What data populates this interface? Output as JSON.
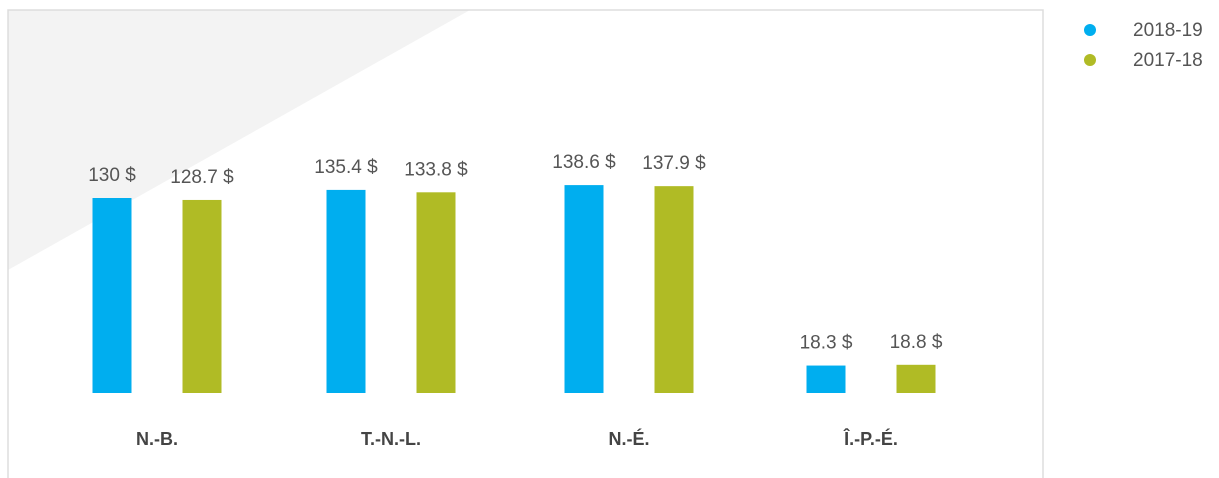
{
  "chart_data": {
    "type": "bar",
    "categories": [
      "N.-B.",
      "T.-N.-L.",
      "N.-É.",
      "Î.-P.-É."
    ],
    "series": [
      {
        "name": "2018-19",
        "color": "#00aeef",
        "values": [
          130,
          135.4,
          138.6,
          18.3
        ],
        "value_labels": [
          "130 $",
          "135.4 $",
          "138.6 $",
          "18.3 $"
        ]
      },
      {
        "name": "2017-18",
        "color": "#b0bb25",
        "values": [
          128.7,
          133.8,
          137.9,
          18.8
        ],
        "value_labels": [
          "128.7 $",
          "133.8 $",
          "137.9 $",
          "18.8 $"
        ]
      }
    ],
    "ylim": [
      0,
      150
    ],
    "legend": "upper right"
  }
}
